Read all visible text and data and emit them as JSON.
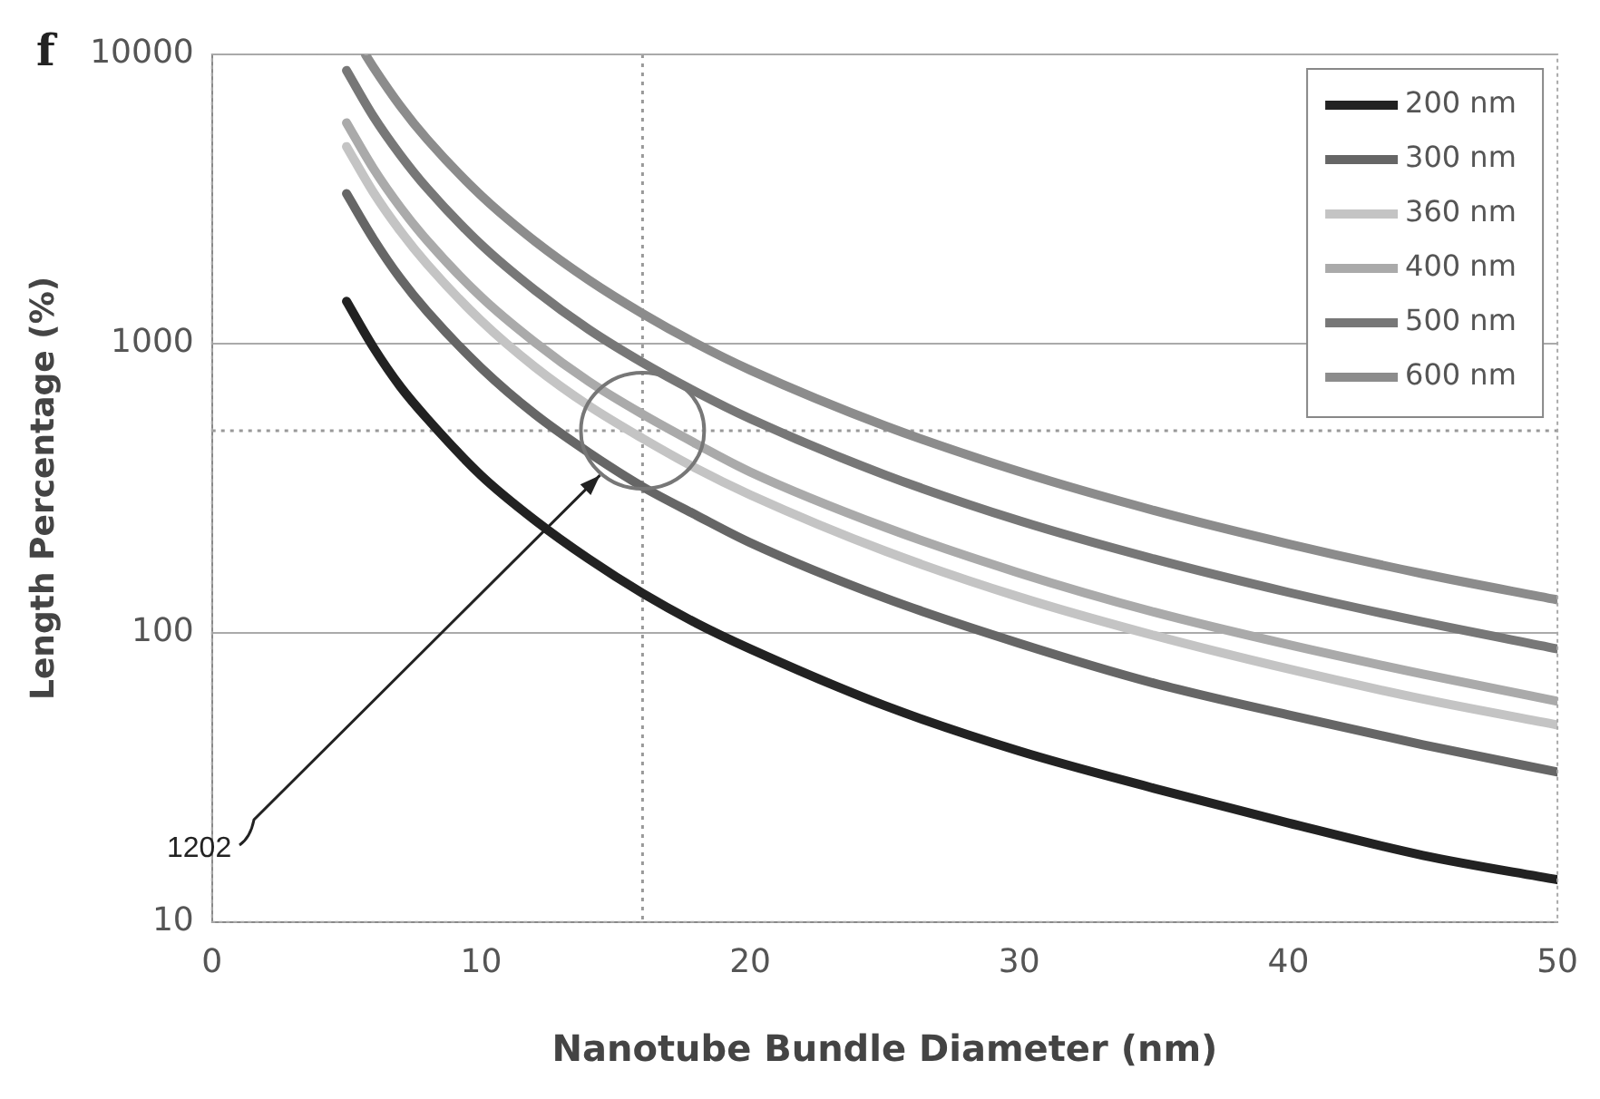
{
  "chart_data": {
    "type": "line",
    "xlabel": "Nanotube Bundle Diameter (nm)",
    "ylabel": "Length Percentage (%)",
    "xlim": [
      0,
      50
    ],
    "xticks": [
      0,
      10,
      20,
      30,
      40,
      50
    ],
    "ylim": [
      10,
      10000
    ],
    "yticks": [
      10,
      100,
      1000,
      10000
    ],
    "log": "y",
    "grid": "y",
    "legend": "top right",
    "marker": "none",
    "line_style": "solid",
    "annotations": [
      "f",
      "1202"
    ],
    "ref_lines": [
      {
        "axis": "x",
        "value": 16,
        "label": null,
        "color": "#999999",
        "line_style": "dotted"
      },
      {
        "axis": "y",
        "value": 500,
        "label": null,
        "color": "#999999",
        "line_style": "dotted"
      }
    ],
    "series": [
      {
        "name": "200 nm",
        "color": "#222222",
        "x": [
          5,
          6,
          7,
          8,
          10,
          12,
          14,
          16,
          18,
          20,
          25,
          30,
          35,
          40,
          45,
          50
        ],
        "values": [
          1400,
          970,
          710,
          550,
          350,
          245,
          180,
          137,
          108,
          88,
          56,
          39,
          29,
          22,
          17,
          14
        ]
      },
      {
        "name": "300 nm",
        "color": "#666666",
        "x": [
          5,
          6,
          7,
          8,
          10,
          12,
          14,
          16,
          18,
          20,
          25,
          30,
          35,
          40,
          45,
          50
        ],
        "values": [
          3300,
          2300,
          1680,
          1290,
          825,
          570,
          420,
          320,
          255,
          205,
          132,
          92,
          67,
          52,
          41,
          33
        ]
      },
      {
        "name": "360 nm",
        "color": "#c4c4c4",
        "x": [
          5,
          6,
          7,
          8,
          10,
          12,
          14,
          16,
          18,
          20,
          25,
          30,
          35,
          40,
          45,
          50
        ],
        "values": [
          4800,
          3330,
          2450,
          1880,
          1200,
          830,
          610,
          470,
          370,
          300,
          192,
          133,
          98,
          75,
          59,
          48
        ]
      },
      {
        "name": "400 nm",
        "color": "#aaaaaa",
        "x": [
          5,
          6,
          7,
          8,
          10,
          12,
          14,
          16,
          18,
          20,
          25,
          30,
          35,
          40,
          45,
          50
        ],
        "values": [
          5800,
          4030,
          2960,
          2270,
          1450,
          1010,
          740,
          570,
          450,
          360,
          232,
          161,
          118,
          91,
          72,
          58
        ]
      },
      {
        "name": "500 nm",
        "color": "#777777",
        "x": [
          5,
          6,
          7,
          8,
          10,
          12,
          14,
          16,
          18,
          20,
          25,
          30,
          35,
          40,
          45,
          50
        ],
        "values": [
          8800,
          6100,
          4490,
          3440,
          2200,
          1530,
          1120,
          860,
          680,
          550,
          352,
          244,
          180,
          138,
          109,
          88
        ]
      },
      {
        "name": "600 nm",
        "color": "#8c8c8c",
        "x": [
          5.7,
          6,
          7,
          8,
          10,
          12,
          14,
          16,
          18,
          20,
          25,
          30,
          35,
          40,
          45,
          50
        ],
        "values": [
          10000,
          9030,
          6630,
          5080,
          3250,
          2260,
          1660,
          1270,
          1000,
          810,
          520,
          361,
          265,
          203,
          160,
          130
        ]
      }
    ]
  }
}
